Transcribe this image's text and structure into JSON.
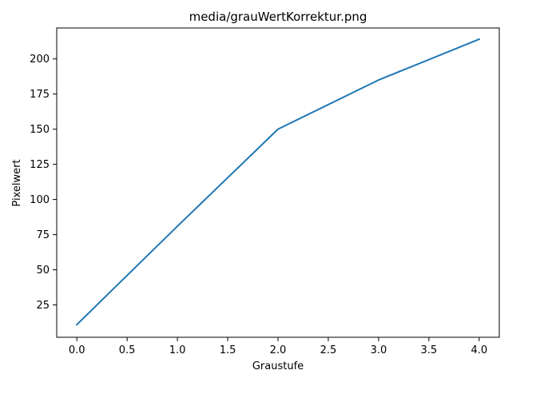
{
  "chart_data": {
    "type": "line",
    "title": "media/grauWertKorrektur.png",
    "xlabel": "Graustufe",
    "ylabel": "Pixelwert",
    "xlim": [
      -0.2,
      4.2
    ],
    "ylim": [
      2,
      222
    ],
    "xticks": [
      0.0,
      0.5,
      1.0,
      1.5,
      2.0,
      2.5,
      3.0,
      3.5,
      4.0
    ],
    "xtick_labels": [
      "0.0",
      "0.5",
      "1.0",
      "1.5",
      "2.0",
      "2.5",
      "3.0",
      "3.5",
      "4.0"
    ],
    "yticks": [
      25,
      50,
      75,
      100,
      125,
      150,
      175,
      200
    ],
    "ytick_labels": [
      "25",
      "50",
      "75",
      "100",
      "125",
      "150",
      "175",
      "200"
    ],
    "grid": false,
    "series": [
      {
        "color": "#1f77b4",
        "x": [
          0,
          1,
          2,
          3,
          4
        ],
        "y": [
          11,
          81,
          150,
          185,
          214
        ]
      }
    ]
  }
}
